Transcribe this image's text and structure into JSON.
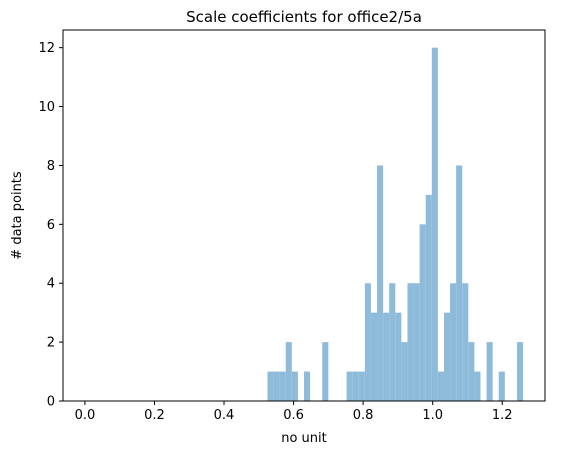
{
  "chart_data": {
    "type": "bar",
    "title": "Scale coefficients for office2/5a",
    "xlabel": "no unit",
    "ylabel": "# data points",
    "xlim": [
      -0.063,
      1.323
    ],
    "ylim": [
      0,
      12.6
    ],
    "xticks": [
      0.0,
      0.2,
      0.4,
      0.6,
      0.8,
      1.0,
      1.2
    ],
    "xtick_labels": [
      "0.0",
      "0.2",
      "0.4",
      "0.6",
      "0.8",
      "1.0",
      "1.2"
    ],
    "yticks": [
      0,
      2,
      4,
      6,
      8,
      10,
      12
    ],
    "ytick_labels": [
      "0",
      "2",
      "4",
      "6",
      "8",
      "10",
      "12"
    ],
    "grid": false,
    "bar_color": "#8fbbda",
    "bin_width": 0.0175,
    "bins": [
      {
        "x": 0.525,
        "count": 1
      },
      {
        "x": 0.5425,
        "count": 1
      },
      {
        "x": 0.56,
        "count": 1
      },
      {
        "x": 0.5775,
        "count": 2
      },
      {
        "x": 0.595,
        "count": 1
      },
      {
        "x": 0.63,
        "count": 1
      },
      {
        "x": 0.6825,
        "count": 2
      },
      {
        "x": 0.7525,
        "count": 1
      },
      {
        "x": 0.77,
        "count": 1
      },
      {
        "x": 0.7875,
        "count": 1
      },
      {
        "x": 0.805,
        "count": 4
      },
      {
        "x": 0.8225,
        "count": 3
      },
      {
        "x": 0.84,
        "count": 8
      },
      {
        "x": 0.8575,
        "count": 3
      },
      {
        "x": 0.875,
        "count": 4
      },
      {
        "x": 0.8925,
        "count": 3
      },
      {
        "x": 0.91,
        "count": 2
      },
      {
        "x": 0.9275,
        "count": 4
      },
      {
        "x": 0.945,
        "count": 4
      },
      {
        "x": 0.9625,
        "count": 6
      },
      {
        "x": 0.98,
        "count": 7
      },
      {
        "x": 0.9975,
        "count": 12
      },
      {
        "x": 1.015,
        "count": 1
      },
      {
        "x": 1.0325,
        "count": 3
      },
      {
        "x": 1.05,
        "count": 4
      },
      {
        "x": 1.0675,
        "count": 8
      },
      {
        "x": 1.085,
        "count": 4
      },
      {
        "x": 1.1025,
        "count": 2
      },
      {
        "x": 1.12,
        "count": 1
      },
      {
        "x": 1.155,
        "count": 2
      },
      {
        "x": 1.19,
        "count": 1
      },
      {
        "x": 1.2425,
        "count": 2
      }
    ]
  }
}
